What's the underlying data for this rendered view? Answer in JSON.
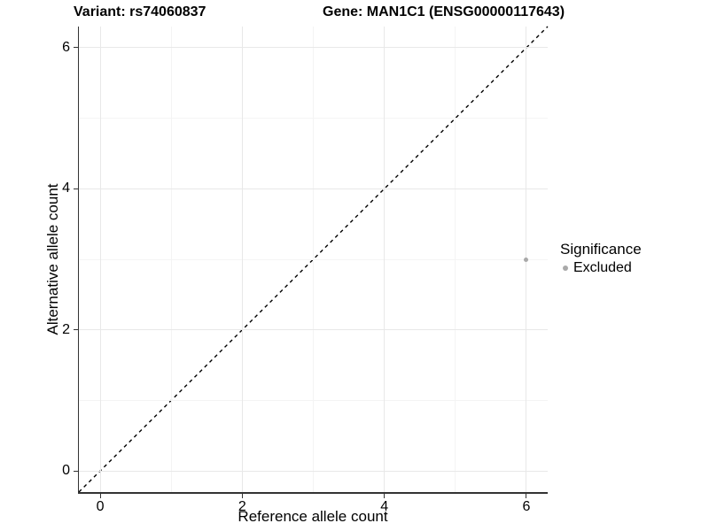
{
  "chart_data": {
    "type": "scatter",
    "titles": {
      "left": "Variant: rs74060837",
      "right": "Gene: MAN1C1 (ENSG00000117643)"
    },
    "xlabel": "Reference allele count",
    "ylabel": "Alternative allele count",
    "xlim": [
      -0.3,
      6.3
    ],
    "ylim": [
      -0.3,
      6.3
    ],
    "x_ticks": [
      0,
      2,
      4,
      6
    ],
    "y_ticks": [
      0,
      2,
      4,
      6
    ],
    "x_minor_ticks": [
      1,
      3,
      5
    ],
    "y_minor_ticks": [
      1,
      3,
      5
    ],
    "grid": "major+minor",
    "points": [
      {
        "x": 6,
        "y": 3,
        "significance": "Excluded"
      }
    ],
    "identity_line": {
      "slope": 1,
      "intercept": 0,
      "linetype": "dashed",
      "color": "#000000"
    },
    "legend": {
      "title": "Significance",
      "position": "right",
      "entries": [
        {
          "label": "Excluded",
          "color": "#a9a9a9",
          "marker": "circle"
        }
      ]
    },
    "colors": {
      "point": "#a9a9a9",
      "grid_major": "#e8e8e8",
      "grid_minor": "#f4f4f4",
      "axis_line": "#333333",
      "background": "#ffffff",
      "text": "#000000"
    }
  }
}
